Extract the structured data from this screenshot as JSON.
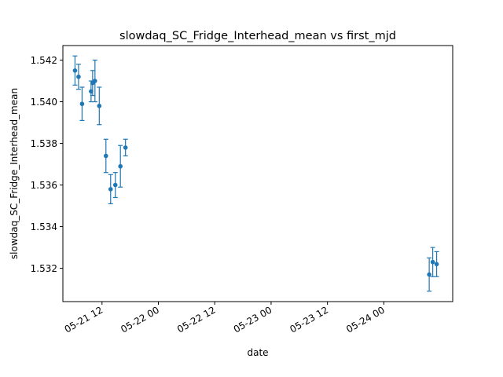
{
  "chart_data": {
    "type": "scatter",
    "title": "slowdaq_SC_Fridge_Interhead_mean vs first_mjd",
    "xlabel": "date",
    "ylabel": "slowdaq_SC_Fridge_Interhead_mean",
    "x_ticks": [
      {
        "value": "2024-05-21T12:00",
        "label": "05-21 12"
      },
      {
        "value": "2024-05-22T00:00",
        "label": "05-22 00"
      },
      {
        "value": "2024-05-22T12:00",
        "label": "05-22 12"
      },
      {
        "value": "2024-05-23T00:00",
        "label": "05-23 00"
      },
      {
        "value": "2024-05-23T12:00",
        "label": "05-23 12"
      },
      {
        "value": "2024-05-24T00:00",
        "label": "05-24 00"
      }
    ],
    "xlim": [
      "2024-05-21T03:40",
      "2024-05-24T14:40"
    ],
    "y_ticks": [
      1.532,
      1.534,
      1.536,
      1.538,
      1.54,
      1.542
    ],
    "y_tick_labels": [
      "1.532",
      "1.534",
      "1.536",
      "1.538",
      "1.540",
      "1.542"
    ],
    "ylim": [
      1.5304,
      1.5427
    ],
    "grid": false,
    "color": "#1f77b4",
    "points": [
      {
        "x": "2024-05-21T06:15",
        "y": 1.5415,
        "err": 0.0007
      },
      {
        "x": "2024-05-21T07:00",
        "y": 1.5412,
        "err": 0.0006
      },
      {
        "x": "2024-05-21T07:45",
        "y": 1.5399,
        "err": 0.0008
      },
      {
        "x": "2024-05-21T09:40",
        "y": 1.5405,
        "err": 0.0005
      },
      {
        "x": "2024-05-21T10:00",
        "y": 1.5409,
        "err": 0.0006
      },
      {
        "x": "2024-05-21T10:30",
        "y": 1.541,
        "err": 0.001
      },
      {
        "x": "2024-05-21T11:25",
        "y": 1.5398,
        "err": 0.0009
      },
      {
        "x": "2024-05-21T12:50",
        "y": 1.5374,
        "err": 0.0008
      },
      {
        "x": "2024-05-21T13:50",
        "y": 1.5358,
        "err": 0.0007
      },
      {
        "x": "2024-05-21T14:50",
        "y": 1.536,
        "err": 0.0006
      },
      {
        "x": "2024-05-21T15:55",
        "y": 1.5369,
        "err": 0.001
      },
      {
        "x": "2024-05-21T17:00",
        "y": 1.5378,
        "err": 0.0004
      },
      {
        "x": "2024-05-24T09:40",
        "y": 1.5317,
        "err": 0.0008
      },
      {
        "x": "2024-05-24T10:25",
        "y": 1.5323,
        "err": 0.0007
      },
      {
        "x": "2024-05-24T11:15",
        "y": 1.5322,
        "err": 0.0006
      }
    ]
  }
}
